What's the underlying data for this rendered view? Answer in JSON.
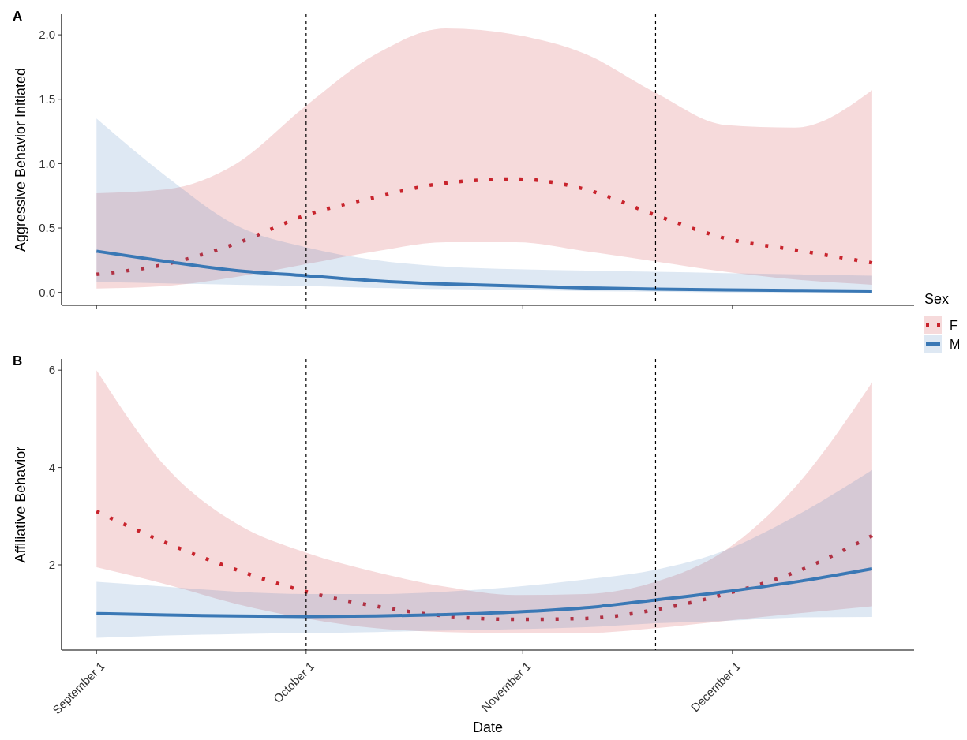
{
  "chart_data": [
    {
      "type": "line",
      "title": "A",
      "ylabel": "Aggressive Behavior Initiated",
      "tick_labels": "y",
      "grid": false,
      "legend": false,
      "x": [
        "--09-01",
        "--09-11",
        "--09-21",
        "--10-01",
        "--10-11",
        "--10-21",
        "--10-31",
        "--11-10",
        "--11-20",
        "--11-30",
        "--12-10",
        "--12-21"
      ],
      "xlim": [
        "--08-27",
        "--12-27"
      ],
      "xticks": [
        {
          "value": "--09-01",
          "label": null
        },
        {
          "value": "--10-01",
          "label": null
        },
        {
          "value": "--11-01",
          "label": null
        },
        {
          "value": "--12-01",
          "label": null
        }
      ],
      "ylim": [
        -0.1,
        2.16
      ],
      "yticks": [
        {
          "value": 0,
          "label": "0.0"
        },
        0.5,
        {
          "value": 1,
          "label": "1.0"
        },
        1.5,
        {
          "value": 2,
          "label": "2.0"
        }
      ],
      "ref_lines": [
        {
          "axis": "x",
          "value": "--10-01",
          "label": null,
          "line_style": "dashed"
        },
        {
          "axis": "x",
          "value": "--11-20",
          "label": null,
          "line_style": "dashed"
        }
      ],
      "series": [
        {
          "color": "#c8232c",
          "line_style": "dotted",
          "values": [
            0.14,
            0.22,
            0.38,
            0.6,
            0.74,
            0.85,
            0.88,
            0.8,
            0.6,
            0.42,
            0.33,
            0.23
          ],
          "lower": [
            0.03,
            0.05,
            0.12,
            0.22,
            0.32,
            0.39,
            0.39,
            0.32,
            0.24,
            0.16,
            0.1,
            0.06
          ],
          "upper": [
            0.77,
            0.8,
            1.0,
            1.45,
            1.85,
            2.05,
            2.0,
            1.85,
            1.55,
            1.3,
            1.28,
            1.57
          ]
        },
        {
          "color": "#3a78b5",
          "line_style": "solid",
          "values": [
            0.32,
            0.24,
            0.17,
            0.13,
            0.09,
            0.065,
            0.05,
            0.035,
            0.025,
            0.02,
            0.015,
            0.01
          ],
          "lower": [
            0.08,
            0.07,
            0.06,
            0.05,
            0.035,
            0.025,
            0.02,
            0.01,
            0.005,
            0,
            0,
            0
          ],
          "upper": [
            1.35,
            0.9,
            0.52,
            0.35,
            0.25,
            0.2,
            0.18,
            0.17,
            0.16,
            0.15,
            0.14,
            0.13
          ]
        }
      ]
    },
    {
      "type": "line",
      "title": "B",
      "xlabel": "Date",
      "ylabel": "Affiliative Behavior",
      "legend_title": "Sex",
      "legend": "top right",
      "grid": false,
      "x": [
        "--09-01",
        "--09-11",
        "--09-21",
        "--10-01",
        "--10-11",
        "--10-21",
        "--10-31",
        "--11-10",
        "--11-20",
        "--11-30",
        "--12-10",
        "--12-21"
      ],
      "xlim": [
        "--08-27",
        "--12-27"
      ],
      "xticks": [
        {
          "value": "--09-01",
          "label": "September 1"
        },
        {
          "value": "--10-01",
          "label": "October 1"
        },
        {
          "value": "--11-01",
          "label": "November 1"
        },
        {
          "value": "--12-01",
          "label": "December 1"
        }
      ],
      "ylim": [
        0.25,
        6.23
      ],
      "yticks": [
        2,
        4,
        6
      ],
      "ref_lines": [
        {
          "axis": "x",
          "value": "--10-01",
          "label": null,
          "line_style": "dashed"
        },
        {
          "axis": "x",
          "value": "--11-20",
          "label": null,
          "line_style": "dashed"
        }
      ],
      "series": [
        {
          "name": "F",
          "color": "#c8232c",
          "line_style": "dotted",
          "values": [
            3.1,
            2.45,
            1.9,
            1.45,
            1.15,
            0.95,
            0.88,
            0.9,
            1.08,
            1.4,
            1.85,
            2.6
          ],
          "lower": [
            1.95,
            1.6,
            1.2,
            0.9,
            0.7,
            0.62,
            0.6,
            0.6,
            0.7,
            0.85,
            1.0,
            1.15
          ],
          "upper": [
            6.0,
            4.0,
            2.85,
            2.25,
            1.85,
            1.55,
            1.38,
            1.4,
            1.65,
            2.3,
            3.6,
            5.75
          ]
        },
        {
          "name": "M",
          "color": "#3a78b5",
          "line_style": "solid",
          "values": [
            1.0,
            0.97,
            0.95,
            0.94,
            0.95,
            0.98,
            1.03,
            1.12,
            1.28,
            1.45,
            1.65,
            1.92
          ],
          "lower": [
            0.5,
            0.55,
            0.58,
            0.6,
            0.62,
            0.65,
            0.68,
            0.72,
            0.8,
            0.85,
            0.92,
            0.93
          ],
          "upper": [
            1.65,
            1.55,
            1.45,
            1.4,
            1.4,
            1.45,
            1.55,
            1.7,
            1.9,
            2.3,
            3.0,
            3.95
          ]
        }
      ]
    }
  ]
}
